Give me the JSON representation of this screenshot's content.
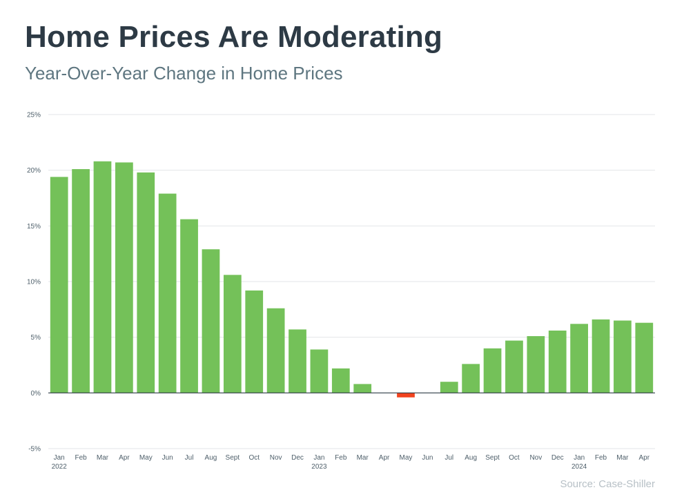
{
  "header": {
    "title": "Home Prices Are Moderating",
    "subtitle": "Year-Over-Year Change in Home Prices"
  },
  "footer": {
    "source": "Source: Case-Shiller"
  },
  "chart_data": {
    "type": "bar",
    "title": "Home Prices Are Moderating",
    "subtitle": "Year-Over-Year Change in Home Prices",
    "xlabel": "",
    "ylabel": "",
    "ylim": [
      -5,
      25
    ],
    "yticks": [
      "25%",
      "20%",
      "15%",
      "10%",
      "5%",
      "0%",
      "-5%"
    ],
    "ytick_values": [
      25,
      20,
      15,
      10,
      5,
      0,
      -5
    ],
    "grid": true,
    "legend": "none",
    "categories": [
      "Jan",
      "Feb",
      "Mar",
      "Apr",
      "May",
      "Jun",
      "Jul",
      "Aug",
      "Sept",
      "Oct",
      "Nov",
      "Dec",
      "Jan",
      "Feb",
      "Mar",
      "Apr",
      "May",
      "Jun",
      "Jul",
      "Aug",
      "Sept",
      "Oct",
      "Nov",
      "Dec",
      "Jan",
      "Feb",
      "Mar",
      "Apr"
    ],
    "year_labels": [
      "2022",
      "",
      "",
      "",
      "",
      "",
      "",
      "",
      "",
      "",
      "",
      "",
      "2023",
      "",
      "",
      "",
      "",
      "",
      "",
      "",
      "",
      "",
      "",
      "",
      "2024",
      "",
      "",
      ""
    ],
    "values": [
      19.4,
      20.1,
      20.8,
      20.7,
      19.8,
      17.9,
      15.6,
      12.9,
      10.6,
      9.2,
      7.6,
      5.7,
      3.9,
      2.2,
      0.8,
      0.0,
      -0.4,
      0.0,
      1.0,
      2.6,
      4.0,
      4.7,
      5.1,
      5.6,
      6.2,
      6.6,
      6.5,
      6.3
    ],
    "colors": {
      "positive": "#74c159",
      "negative": "#f1431f",
      "grid": "#e3e6e8",
      "zero_line": "#2d3a45"
    }
  }
}
